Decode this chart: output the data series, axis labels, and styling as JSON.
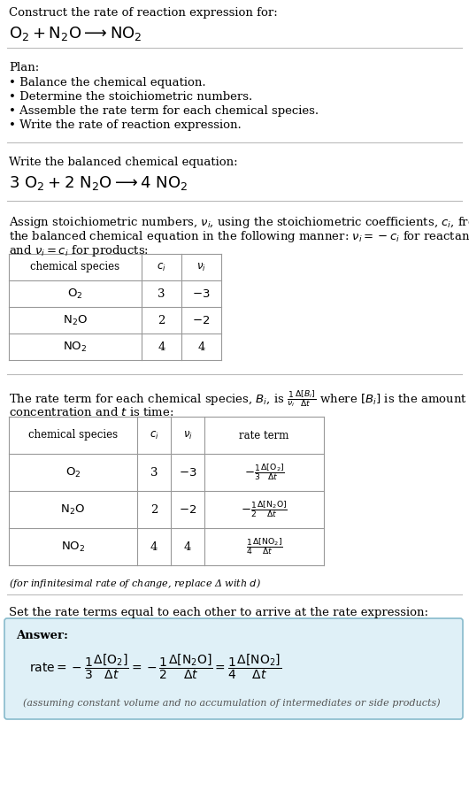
{
  "bg_color": "#ffffff",
  "text_color": "#000000",
  "section1_title": "Construct the rate of reaction expression for:",
  "section2_title": "Plan:",
  "section2_bullets": [
    "• Balance the chemical equation.",
    "• Determine the stoichiometric numbers.",
    "• Assemble the rate term for each chemical species.",
    "• Write the rate of reaction expression."
  ],
  "section3_title": "Write the balanced chemical equation:",
  "section4_intro_line1": "Assign stoichiometric numbers, $\\nu_i$, using the stoichiometric coefficients, $c_i$, from",
  "section4_intro_line2": "the balanced chemical equation in the following manner: $\\nu_i = -c_i$ for reactants",
  "section4_intro_line3": "and $\\nu_i = c_i$ for products:",
  "table1_headers": [
    "chemical species",
    "$c_i$",
    "$\\nu_i$"
  ],
  "table1_rows": [
    [
      "$\\mathrm{O_2}$",
      "3",
      "$-3$"
    ],
    [
      "$\\mathrm{N_2O}$",
      "2",
      "$-2$"
    ],
    [
      "$\\mathrm{NO_2}$",
      "4",
      "4"
    ]
  ],
  "section5_intro_line1": "The rate term for each chemical species, $B_i$, is $\\frac{1}{\\nu_i}\\frac{\\Delta[B_i]}{\\Delta t}$ where $[B_i]$ is the amount",
  "section5_intro_line2": "concentration and $t$ is time:",
  "table2_headers": [
    "chemical species",
    "$c_i$",
    "$\\nu_i$",
    "rate term"
  ],
  "table2_rows": [
    [
      "$\\mathrm{O_2}$",
      "3",
      "$-3$",
      "$-\\frac{1}{3}\\frac{\\Delta[\\mathrm{O_2}]}{\\Delta t}$"
    ],
    [
      "$\\mathrm{N_2O}$",
      "2",
      "$-2$",
      "$-\\frac{1}{2}\\frac{\\Delta[\\mathrm{N_2O}]}{\\Delta t}$"
    ],
    [
      "$\\mathrm{NO_2}$",
      "4",
      "4",
      "$\\frac{1}{4}\\frac{\\Delta[\\mathrm{NO_2}]}{\\Delta t}$"
    ]
  ],
  "section5_note": "(for infinitesimal rate of change, replace Δ with $d$)",
  "section6_title": "Set the rate terms equal to each other to arrive at the rate expression:",
  "answer_box_color": "#dff0f7",
  "answer_border_color": "#88bbcc",
  "answer_label": "Answer:",
  "answer_note": "(assuming constant volume and no accumulation of intermediates or side products)"
}
